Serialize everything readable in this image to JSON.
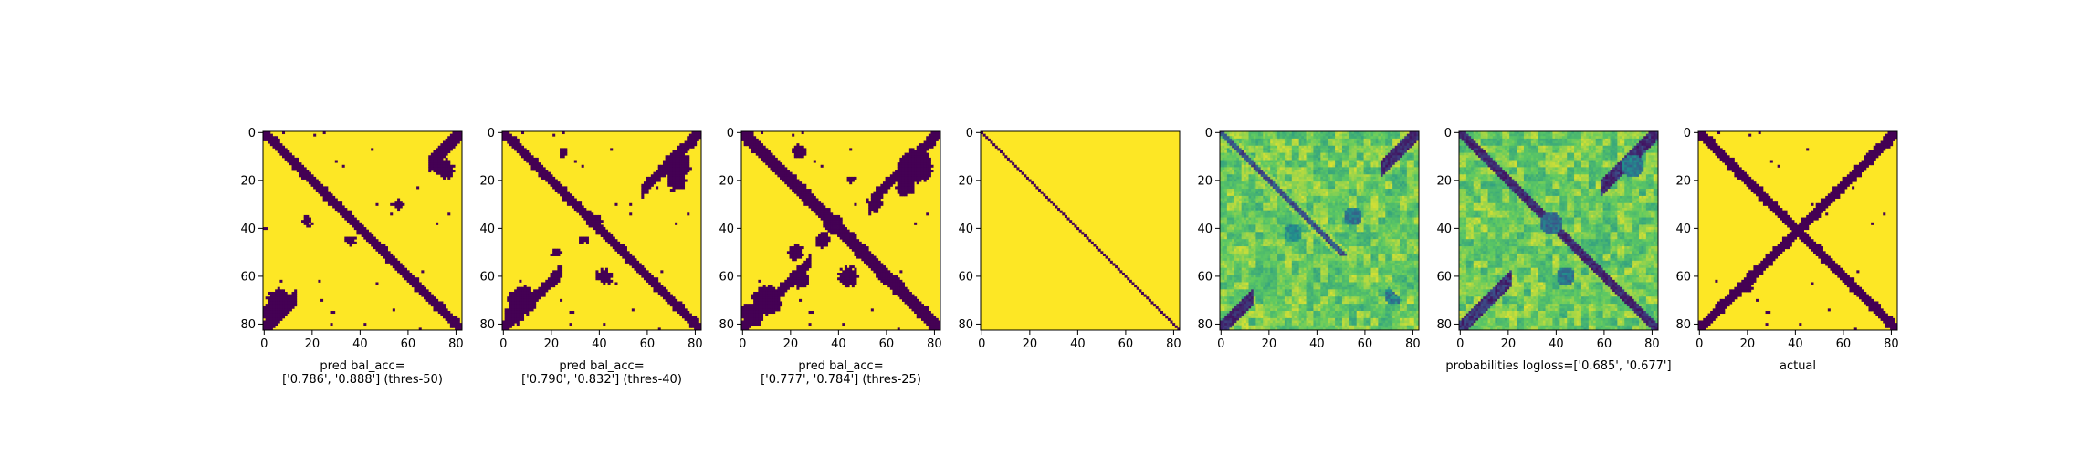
{
  "chart_data": {
    "type": "heatmap",
    "colormap": "viridis",
    "matrix_size": 83,
    "axis_range": [
      0,
      82
    ],
    "grid": false,
    "x_ticks": [
      "0",
      "20",
      "40",
      "60",
      "80"
    ],
    "y_ticks": [
      "0",
      "20",
      "40",
      "60",
      "80"
    ],
    "panels": [
      {
        "id": "pred-thres-50",
        "kind": "binary",
        "xlabel_lines": [
          "pred bal_acc=",
          "['0.786', '0.888'] (thres-50)"
        ]
      },
      {
        "id": "pred-thres-40",
        "kind": "binary",
        "xlabel_lines": [
          "pred bal_acc=",
          "['0.790', '0.832'] (thres-40)"
        ]
      },
      {
        "id": "pred-thres-25",
        "kind": "binary",
        "xlabel_lines": [
          "pred bal_acc=",
          "['0.777', '0.784'] (thres-25)"
        ]
      },
      {
        "id": "identity",
        "kind": "identity",
        "xlabel_lines": []
      },
      {
        "id": "probabilities-1",
        "kind": "continuous",
        "xlabel_lines": []
      },
      {
        "id": "probabilities-2",
        "kind": "continuous",
        "xlabel_lines": [
          "probabilities logloss=['0.685', '0.677']"
        ]
      },
      {
        "id": "actual",
        "kind": "binary",
        "xlabel_lines": [
          "actual"
        ]
      }
    ],
    "colors": {
      "low": "#440154",
      "mid1": "#2a788e",
      "mid2": "#22a884",
      "mid3": "#7ad151",
      "high": "#fde725"
    }
  }
}
